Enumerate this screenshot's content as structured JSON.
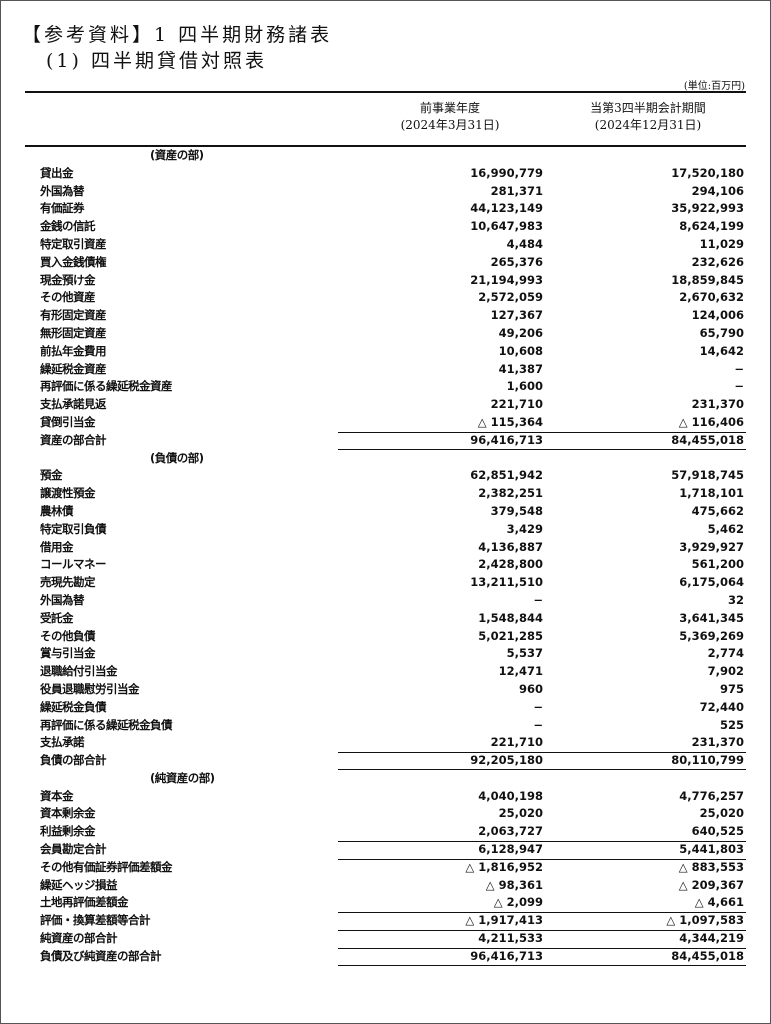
{
  "title": "【参考資料】1 四半期財務諸表",
  "subtitle": "(1) 四半期貸借対照表",
  "unit": "(単位:百万円)",
  "columns": [
    {
      "label": "前事業年度",
      "date": "(2024年3月31日)"
    },
    {
      "label": "当第3四半期会計期間",
      "date": "(2024年12月31日)"
    }
  ],
  "rows": [
    {
      "type": "section",
      "label": "(資産の部)"
    },
    {
      "label": "貸出金",
      "v1": "16,990,779",
      "v2": "17,520,180"
    },
    {
      "label": "外国為替",
      "v1": "281,371",
      "v2": "294,106"
    },
    {
      "label": "有価証券",
      "v1": "44,123,149",
      "v2": "35,922,993"
    },
    {
      "label": "金銭の信託",
      "v1": "10,647,983",
      "v2": "8,624,199"
    },
    {
      "label": "特定取引資産",
      "v1": "4,484",
      "v2": "11,029"
    },
    {
      "label": "買入金銭債権",
      "v1": "265,376",
      "v2": "232,626"
    },
    {
      "label": "現金預け金",
      "v1": "21,194,993",
      "v2": "18,859,845"
    },
    {
      "label": "その他資産",
      "v1": "2,572,059",
      "v2": "2,670,632"
    },
    {
      "label": "有形固定資産",
      "v1": "127,367",
      "v2": "124,006"
    },
    {
      "label": "無形固定資産",
      "v1": "49,206",
      "v2": "65,790"
    },
    {
      "label": "前払年金費用",
      "v1": "10,608",
      "v2": "14,642"
    },
    {
      "label": "繰延税金資産",
      "v1": "41,387",
      "v2": "−"
    },
    {
      "label": "再評価に係る繰延税金資産",
      "v1": "1,600",
      "v2": "−"
    },
    {
      "label": "支払承諾見返",
      "v1": "221,710",
      "v2": "231,370"
    },
    {
      "label": "貸倒引当金",
      "v1": "△ 115,364",
      "v2": "△ 116,406"
    },
    {
      "type": "total",
      "rule": "both",
      "label": "資産の部合計",
      "v1": "96,416,713",
      "v2": "84,455,018"
    },
    {
      "type": "section",
      "label": "(負債の部)"
    },
    {
      "label": "預金",
      "v1": "62,851,942",
      "v2": "57,918,745"
    },
    {
      "label": "譲渡性預金",
      "v1": "2,382,251",
      "v2": "1,718,101"
    },
    {
      "label": "農林債",
      "v1": "379,548",
      "v2": "475,662"
    },
    {
      "label": "特定取引負債",
      "v1": "3,429",
      "v2": "5,462"
    },
    {
      "label": "借用金",
      "v1": "4,136,887",
      "v2": "3,929,927"
    },
    {
      "label": "コールマネー",
      "v1": "2,428,800",
      "v2": "561,200"
    },
    {
      "label": "売現先勘定",
      "v1": "13,211,510",
      "v2": "6,175,064"
    },
    {
      "label": "外国為替",
      "v1": "−",
      "v2": "32"
    },
    {
      "label": "受託金",
      "v1": "1,548,844",
      "v2": "3,641,345"
    },
    {
      "label": "その他負債",
      "v1": "5,021,285",
      "v2": "5,369,269"
    },
    {
      "label": "賞与引当金",
      "v1": "5,537",
      "v2": "2,774"
    },
    {
      "label": "退職給付引当金",
      "v1": "12,471",
      "v2": "7,902"
    },
    {
      "label": "役員退職慰労引当金",
      "v1": "960",
      "v2": "975"
    },
    {
      "label": "繰延税金負債",
      "v1": "−",
      "v2": "72,440"
    },
    {
      "label": "再評価に係る繰延税金負債",
      "v1": "−",
      "v2": "525"
    },
    {
      "label": "支払承諾",
      "v1": "221,710",
      "v2": "231,370"
    },
    {
      "type": "total",
      "rule": "both",
      "label": "負債の部合計",
      "v1": "92,205,180",
      "v2": "80,110,799"
    },
    {
      "type": "section",
      "label": "(純資産の部)"
    },
    {
      "label": "資本金",
      "v1": "4,040,198",
      "v2": "4,776,257"
    },
    {
      "label": "資本剰余金",
      "v1": "25,020",
      "v2": "25,020"
    },
    {
      "label": "利益剰余金",
      "v1": "2,063,727",
      "v2": "640,525"
    },
    {
      "type": "total",
      "rule": "top",
      "label": "会員勘定合計",
      "v1": "6,128,947",
      "v2": "5,441,803"
    },
    {
      "label": "その他有価証券評価差額金",
      "rule": "top",
      "v1": "△ 1,816,952",
      "v2": "△ 883,553"
    },
    {
      "label": "繰延ヘッジ損益",
      "v1": "△ 98,361",
      "v2": "△ 209,367"
    },
    {
      "label": "土地再評価差額金",
      "v1": "△ 2,099",
      "v2": "△ 4,661"
    },
    {
      "type": "total",
      "rule": "top",
      "label": "評価・換算差額等合計",
      "v1": "△ 1,917,413",
      "v2": "△ 1,097,583"
    },
    {
      "type": "total",
      "rule": "top",
      "label": "純資産の部合計",
      "v1": "4,211,533",
      "v2": "4,344,219"
    },
    {
      "type": "total",
      "rule": "both",
      "label": "負債及び純資産の部合計",
      "v1": "96,416,713",
      "v2": "84,455,018"
    }
  ]
}
